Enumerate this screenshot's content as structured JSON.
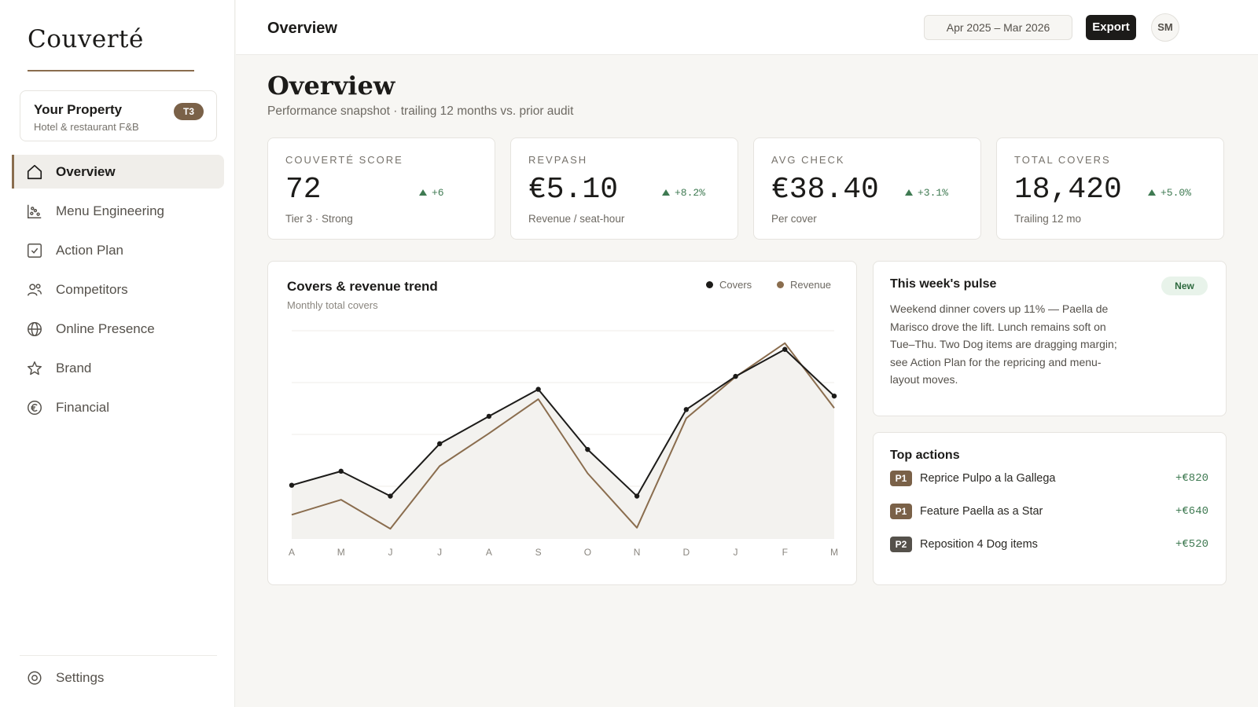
{
  "app": {
    "logo": "Couverté"
  },
  "property": {
    "name": "Your Property",
    "subtitle": "Hotel & restaurant F&B",
    "tier": "T3"
  },
  "sidebar": {
    "items": [
      {
        "label": "Overview",
        "icon": "home-icon",
        "active": true
      },
      {
        "label": "Menu Engineering",
        "icon": "scatter-chart-icon",
        "active": false
      },
      {
        "label": "Action Plan",
        "icon": "checkbox-icon",
        "active": false
      },
      {
        "label": "Competitors",
        "icon": "users-icon",
        "active": false
      },
      {
        "label": "Online Presence",
        "icon": "globe-icon",
        "active": false
      },
      {
        "label": "Brand",
        "icon": "star-icon",
        "active": false
      },
      {
        "label": "Financial",
        "icon": "euro-icon",
        "active": false
      }
    ],
    "settings_label": "Settings"
  },
  "topbar": {
    "title": "Overview",
    "date_range": "Apr 2025 – Mar 2026",
    "export_label": "Export",
    "avatar_initials": "SM"
  },
  "page": {
    "title": "Overview",
    "subtitle": "Performance snapshot · trailing 12 months vs. prior audit"
  },
  "kpis": [
    {
      "label": "Couverté Score",
      "value": "72",
      "delta": "+6",
      "foot": "Tier 3 · Strong"
    },
    {
      "label": "RevPASH",
      "value": "€5.10",
      "delta": "+8.2%",
      "foot": "Revenue / seat-hour"
    },
    {
      "label": "Avg Check",
      "value": "€38.40",
      "delta": "+3.1%",
      "foot": "Per cover"
    },
    {
      "label": "Total Covers",
      "value": "18,420",
      "delta": "+5.0%",
      "foot": "Trailing 12 mo"
    }
  ],
  "chart": {
    "title": "Covers & revenue trend",
    "subtitle": "Monthly total covers"
  },
  "chart_data": {
    "type": "line",
    "categories": [
      "A",
      "M",
      "J",
      "J",
      "A",
      "S",
      "O",
      "N",
      "D",
      "J",
      "F",
      "M"
    ],
    "series": [
      {
        "name": "Covers",
        "color": "#1c1b19",
        "values": [
          1.02,
          1.29,
          0.81,
          1.82,
          2.35,
          2.87,
          1.71,
          0.81,
          2.48,
          3.12,
          3.64,
          2.74
        ]
      },
      {
        "name": "Revenue",
        "color": "#8a6d4e",
        "values": [
          0.45,
          0.74,
          0.18,
          1.39,
          2.02,
          2.68,
          1.25,
          0.2,
          2.31,
          3.11,
          3.76,
          2.51
        ]
      }
    ],
    "ylim": [
      0,
      4
    ],
    "grid": true,
    "legend": "top-right"
  },
  "pulse": {
    "title": "This week's pulse",
    "badge": "New",
    "text": "Weekend dinner covers up 11% — Paella de Marisco drove the lift. Lunch remains soft on Tue–Thu. Two Dog items are dragging margin; see Action Plan for the repricing and menu-layout moves."
  },
  "actions": {
    "title": "Top actions",
    "items": [
      {
        "priority": "P1",
        "label": "Reprice Pulpo a la Gallega",
        "value": "+€820",
        "color": "#7a6148"
      },
      {
        "priority": "P1",
        "label": "Feature Paella as a Star",
        "value": "+€640",
        "color": "#7a6148"
      },
      {
        "priority": "P2",
        "label": "Reposition 4 Dog items",
        "value": "+€520",
        "color": "#55514b"
      }
    ]
  }
}
